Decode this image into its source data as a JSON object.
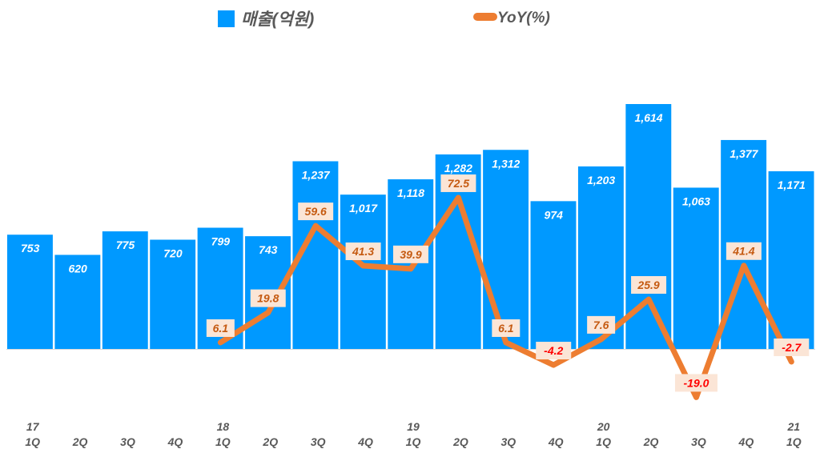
{
  "chart_data": {
    "type": "bar+line",
    "title": "",
    "legend": {
      "position": "top",
      "entries": [
        "매출(억원)",
        "YoY(%)"
      ]
    },
    "categories": [
      "1Q",
      "2Q",
      "3Q",
      "4Q",
      "1Q",
      "2Q",
      "3Q",
      "4Q",
      "1Q",
      "2Q",
      "3Q",
      "4Q",
      "1Q",
      "2Q",
      "3Q",
      "4Q",
      "1Q"
    ],
    "year_labels": [
      "17",
      "",
      "",
      "",
      "18",
      "",
      "",
      "",
      "19",
      "",
      "",
      "",
      "20",
      "",
      "",
      "",
      "21"
    ],
    "series": [
      {
        "name": "매출(억원)",
        "type": "bar",
        "color": "#0099FF",
        "values": [
          753,
          620,
          775,
          720,
          799,
          743,
          1237,
          1017,
          1118,
          1282,
          1312,
          974,
          1203,
          1614,
          1063,
          1377,
          1171
        ],
        "labels": [
          "753",
          "620",
          "775",
          "720",
          "799",
          "743",
          "1,237",
          "1,017",
          "1,118",
          "1,282",
          "1,312",
          "974",
          "1,203",
          "1,614",
          "1,063",
          "1,377",
          "1,171"
        ]
      },
      {
        "name": "YoY(%)",
        "type": "line",
        "color": "#ED7D31",
        "values": [
          null,
          null,
          null,
          null,
          6.1,
          19.8,
          59.6,
          41.3,
          39.9,
          72.5,
          6.1,
          -4.2,
          7.6,
          25.9,
          -19.0,
          41.4,
          -2.7
        ],
        "labels": [
          "",
          "",
          "",
          "",
          "6.1",
          "19.8",
          "59.6",
          "41.3",
          "39.9",
          "72.5",
          "6.1",
          "-4.2",
          "7.6",
          "25.9",
          "-19.0",
          "41.4",
          "-2.7"
        ]
      }
    ],
    "colors": {
      "positive_label": "#C55A11",
      "negative_label": "#FF0000",
      "label_bg": "#FBE5D6",
      "axis_text": "#595959"
    }
  }
}
